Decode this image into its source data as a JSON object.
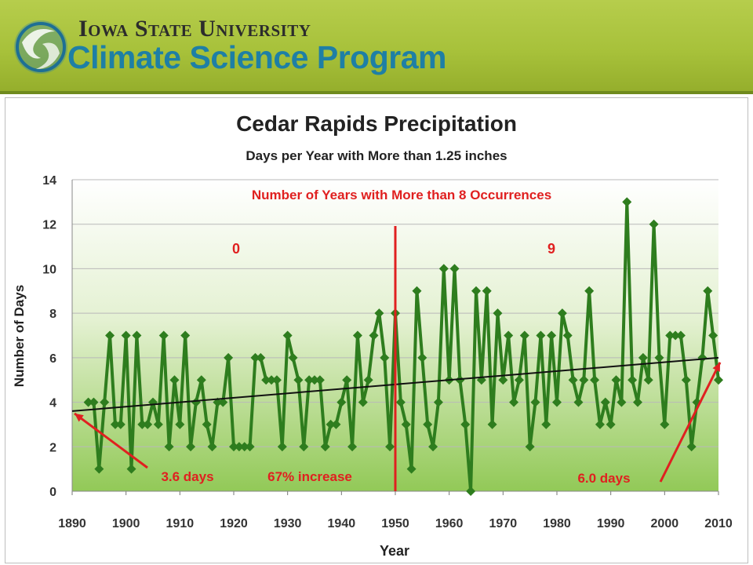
{
  "header": {
    "university": "Iowa State University",
    "program": "Climate Science Program",
    "logo_icon": "globe-swirl-icon",
    "colors": {
      "banner": "#a7c13a",
      "program_text": "#1e7fa5"
    }
  },
  "chart_data": {
    "type": "line",
    "title": "Cedar Rapids Precipitation",
    "subtitle": "Days per Year with More than 1.25 inches",
    "xlabel": "Year",
    "ylabel": "Number of Days",
    "xlim": [
      1890,
      2010
    ],
    "ylim": [
      0,
      14
    ],
    "xticks": [
      "1890",
      "1900",
      "1910",
      "1920",
      "1930",
      "1940",
      "1950",
      "1960",
      "1970",
      "1980",
      "1990",
      "2000",
      "2010"
    ],
    "yticks": [
      "0",
      "2",
      "4",
      "6",
      "8",
      "10",
      "12",
      "14"
    ],
    "grid": true,
    "series": [
      {
        "color": "#2e7d1e",
        "marker": "diamond",
        "x": [
          1893,
          1894,
          1895,
          1896,
          1897,
          1898,
          1899,
          1900,
          1901,
          1902,
          1903,
          1904,
          1905,
          1906,
          1907,
          1908,
          1909,
          1910,
          1911,
          1912,
          1913,
          1914,
          1915,
          1916,
          1917,
          1918,
          1919,
          1920,
          1921,
          1922,
          1923,
          1924,
          1925,
          1926,
          1927,
          1928,
          1929,
          1930,
          1931,
          1932,
          1933,
          1934,
          1935,
          1936,
          1937,
          1938,
          1939,
          1940,
          1941,
          1942,
          1943,
          1944,
          1945,
          1946,
          1947,
          1948,
          1949,
          1950,
          1951,
          1952,
          1953,
          1954,
          1955,
          1956,
          1957,
          1958,
          1959,
          1960,
          1961,
          1962,
          1963,
          1964,
          1965,
          1966,
          1967,
          1968,
          1969,
          1970,
          1971,
          1972,
          1973,
          1974,
          1975,
          1976,
          1977,
          1978,
          1979,
          1980,
          1981,
          1982,
          1983,
          1984,
          1985,
          1986,
          1987,
          1988,
          1989,
          1990,
          1991,
          1992,
          1993,
          1994,
          1995,
          1996,
          1997,
          1998,
          1999,
          2000,
          2001,
          2002,
          2003,
          2004,
          2005,
          2006,
          2007,
          2008,
          2009,
          2010
        ],
        "values": [
          4,
          4,
          1,
          4,
          7,
          3,
          3,
          7,
          1,
          7,
          3,
          3,
          4,
          3,
          7,
          2,
          5,
          3,
          7,
          2,
          4,
          5,
          3,
          2,
          4,
          4,
          6,
          2,
          2,
          2,
          2,
          6,
          6,
          5,
          5,
          5,
          2,
          7,
          6,
          5,
          2,
          5,
          5,
          5,
          2,
          3,
          3,
          4,
          5,
          2,
          7,
          4,
          5,
          7,
          8,
          6,
          2,
          8,
          4,
          3,
          1,
          9,
          6,
          3,
          2,
          4,
          10,
          5,
          10,
          5,
          3,
          0,
          9,
          5,
          9,
          3,
          8,
          5,
          7,
          4,
          5,
          7,
          2,
          4,
          7,
          3,
          7,
          4,
          8,
          7,
          5,
          4,
          5,
          9,
          5,
          3,
          4,
          3,
          5,
          4,
          13,
          5,
          4,
          6,
          5,
          12,
          6,
          3,
          7,
          7,
          7,
          5,
          2,
          4,
          6,
          9,
          7,
          5
        ]
      }
    ],
    "trendline": {
      "color": "#111111",
      "start": [
        1890,
        3.6
      ],
      "end": [
        2010,
        6.0
      ]
    },
    "divider": {
      "x": 1950,
      "color": "#e02020"
    },
    "annotations": {
      "heading": "Number of Years with More than 8 Occurrences",
      "left_count": "0",
      "right_count": "9",
      "start_value": "3.6 days",
      "increase": "67% increase",
      "end_value": "6.0 days",
      "color": "#e02020"
    }
  }
}
